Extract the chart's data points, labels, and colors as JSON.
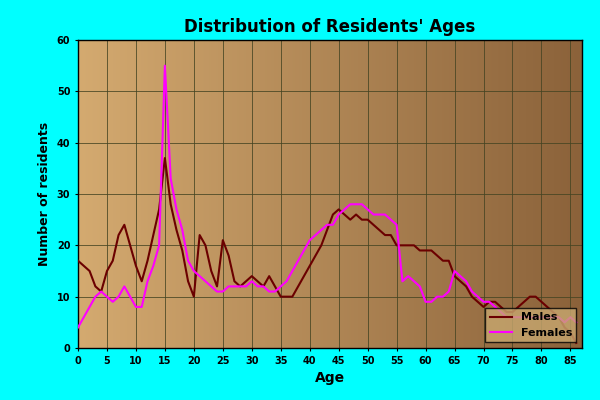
{
  "title": "Distribution of Residents' Ages",
  "xlabel": "Age",
  "ylabel": "Number of residents",
  "background_color": "#00FFFF",
  "ylim": [
    0,
    60
  ],
  "xlim": [
    0,
    87
  ],
  "yticks": [
    0,
    10,
    20,
    30,
    40,
    50,
    60
  ],
  "xticks": [
    0,
    5,
    10,
    15,
    20,
    25,
    30,
    35,
    40,
    45,
    50,
    55,
    60,
    65,
    70,
    75,
    80,
    85
  ],
  "males_color": "#6B0000",
  "females_color": "#FF00FF",
  "males_ages": [
    0,
    1,
    2,
    3,
    4,
    5,
    6,
    7,
    8,
    9,
    10,
    11,
    12,
    13,
    14,
    15,
    16,
    17,
    18,
    19,
    20,
    21,
    22,
    23,
    24,
    25,
    26,
    27,
    28,
    29,
    30,
    31,
    32,
    33,
    34,
    35,
    36,
    37,
    38,
    39,
    40,
    41,
    42,
    43,
    44,
    45,
    46,
    47,
    48,
    49,
    50,
    51,
    52,
    53,
    54,
    55,
    56,
    57,
    58,
    59,
    60,
    61,
    62,
    63,
    64,
    65,
    66,
    67,
    68,
    69,
    70,
    71,
    72,
    73,
    74,
    75,
    76,
    77,
    78,
    79,
    80,
    81,
    82,
    83,
    84,
    85,
    86
  ],
  "males_vals": [
    17,
    16,
    15,
    12,
    11,
    15,
    17,
    22,
    24,
    20,
    16,
    13,
    17,
    22,
    27,
    37,
    28,
    23,
    19,
    13,
    10,
    22,
    20,
    15,
    12,
    21,
    18,
    13,
    12,
    13,
    14,
    13,
    12,
    14,
    12,
    10,
    10,
    10,
    12,
    14,
    16,
    18,
    20,
    23,
    26,
    27,
    26,
    25,
    26,
    25,
    25,
    24,
    23,
    22,
    22,
    20,
    20,
    20,
    20,
    19,
    19,
    19,
    18,
    17,
    17,
    14,
    13,
    12,
    10,
    9,
    8,
    9,
    9,
    8,
    7,
    7,
    8,
    9,
    10,
    10,
    9,
    8,
    7,
    6,
    4,
    3,
    1
  ],
  "females_ages": [
    0,
    1,
    2,
    3,
    4,
    5,
    6,
    7,
    8,
    9,
    10,
    11,
    12,
    13,
    14,
    15,
    16,
    17,
    18,
    19,
    20,
    21,
    22,
    23,
    24,
    25,
    26,
    27,
    28,
    29,
    30,
    31,
    32,
    33,
    34,
    35,
    36,
    37,
    38,
    39,
    40,
    41,
    42,
    43,
    44,
    45,
    46,
    47,
    48,
    49,
    50,
    51,
    52,
    53,
    54,
    55,
    56,
    57,
    58,
    59,
    60,
    61,
    62,
    63,
    64,
    65,
    66,
    67,
    68,
    69,
    70,
    71,
    72,
    73,
    74,
    75,
    76,
    77,
    78,
    79,
    80,
    81,
    82,
    83,
    84,
    85,
    86
  ],
  "females_vals": [
    4,
    6,
    8,
    10,
    11,
    10,
    9,
    10,
    12,
    10,
    8,
    8,
    13,
    16,
    20,
    55,
    33,
    27,
    23,
    17,
    15,
    14,
    13,
    12,
    11,
    11,
    12,
    12,
    12,
    12,
    13,
    12,
    12,
    11,
    11,
    12,
    13,
    15,
    17,
    19,
    21,
    22,
    23,
    24,
    24,
    26,
    27,
    28,
    28,
    28,
    27,
    26,
    26,
    26,
    25,
    24,
    13,
    14,
    13,
    12,
    9,
    9,
    10,
    10,
    11,
    15,
    14,
    13,
    11,
    10,
    9,
    9,
    8,
    7,
    6,
    6,
    6,
    6,
    6,
    6,
    6,
    6,
    6,
    6,
    5,
    6,
    5
  ]
}
